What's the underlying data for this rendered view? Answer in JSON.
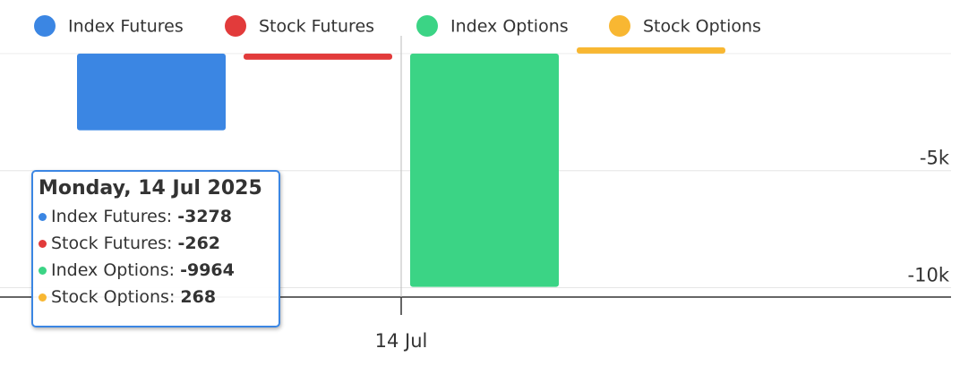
{
  "chart_data": {
    "type": "bar",
    "categories": [
      "14 Jul"
    ],
    "series": [
      {
        "name": "Index Futures",
        "color": "#3b86e3",
        "values": [
          -3278
        ]
      },
      {
        "name": "Stock Futures",
        "color": "#e23b3b",
        "values": [
          -262
        ]
      },
      {
        "name": "Index Options",
        "color": "#3bd485",
        "values": [
          -9964
        ]
      },
      {
        "name": "Stock Options",
        "color": "#f8b732",
        "values": [
          268
        ]
      }
    ],
    "ylim": [
      -10400,
      300
    ],
    "yticks": [
      {
        "value": -10000,
        "label": "-10k"
      },
      {
        "value": -5000,
        "label": "-5k"
      }
    ],
    "grid": true,
    "legend": "top",
    "tooltip": {
      "title": "Monday, 14 Jul 2025"
    }
  }
}
